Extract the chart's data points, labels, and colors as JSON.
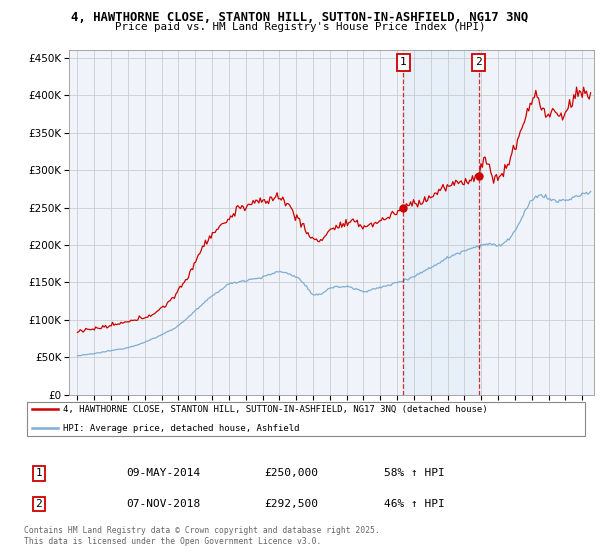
{
  "title_line1": "4, HAWTHORNE CLOSE, STANTON HILL, SUTTON-IN-ASHFIELD, NG17 3NQ",
  "title_line2": "Price paid vs. HM Land Registry's House Price Index (HPI)",
  "background_color": "#ffffff",
  "grid_color": "#cccccc",
  "line1_color": "#cc0000",
  "line2_color": "#7eaed4",
  "sale1_date_x": 2014.35,
  "sale2_date_x": 2018.85,
  "sale1_price": 250000,
  "sale2_price": 292500,
  "sale1_label": "09-MAY-2014",
  "sale2_label": "07-NOV-2018",
  "sale1_pct": "58% ↑ HPI",
  "sale2_pct": "46% ↑ HPI",
  "legend_line1": "4, HAWTHORNE CLOSE, STANTON HILL, SUTTON-IN-ASHFIELD, NG17 3NQ (detached house)",
  "legend_line2": "HPI: Average price, detached house, Ashfield",
  "footer": "Contains HM Land Registry data © Crown copyright and database right 2025.\nThis data is licensed under the Open Government Licence v3.0.",
  "ylim": [
    0,
    460000
  ],
  "xlim_start": 1994.5,
  "xlim_end": 2025.7,
  "yticks": [
    0,
    50000,
    100000,
    150000,
    200000,
    250000,
    300000,
    350000,
    400000,
    450000
  ]
}
